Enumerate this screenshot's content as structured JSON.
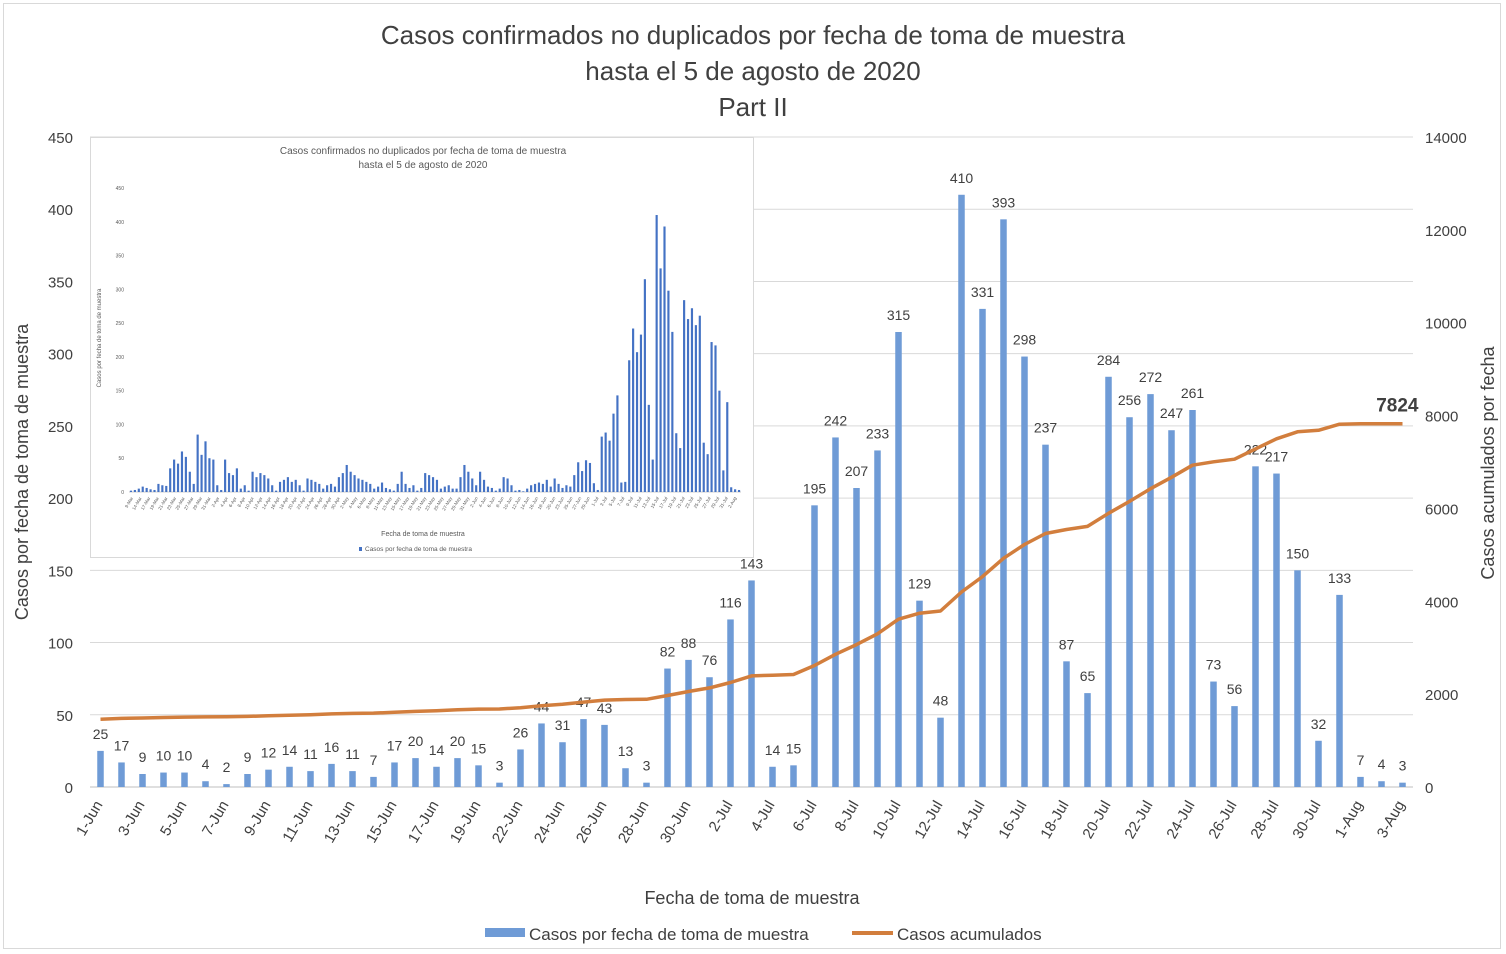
{
  "title_lines": [
    "Casos confirmados no duplicados por fecha de toma de muestra",
    "hasta el 5 de agosto de 2020",
    "Part II"
  ],
  "chart_data": [
    {
      "type": "bar",
      "combo": "bar+line (secondary axis)",
      "xlabel": "Fecha de toma de muestra",
      "ylabel": "Casos por fecha de toma de muestra",
      "y2label": "Casos acumulados por fecha",
      "ylim": [
        0,
        450
      ],
      "y_ticks": [
        0,
        50,
        100,
        150,
        200,
        250,
        300,
        350,
        400,
        450
      ],
      "y2lim": [
        0,
        14000
      ],
      "y2_ticks": [
        0,
        2000,
        4000,
        6000,
        8000,
        10000,
        12000,
        14000
      ],
      "grid": true,
      "legend_position": "bottom",
      "categories": [
        "1-Jun",
        "2-Jun",
        "3-Jun",
        "4-Jun",
        "5-Jun",
        "6-Jun",
        "7-Jun",
        "8-Jun",
        "9-Jun",
        "10-Jun",
        "11-Jun",
        "12-Jun",
        "13-Jun",
        "14-Jun",
        "15-Jun",
        "16-Jun",
        "17-Jun",
        "18-Jun",
        "19-Jun",
        "20-Jun",
        "22-Jun",
        "23-Jun",
        "24-Jun",
        "25-Jun",
        "26-Jun",
        "27-Jun",
        "28-Jun",
        "29-Jun",
        "30-Jun",
        "1-Jul",
        "2-Jul",
        "3-Jul",
        "4-Jul",
        "5-Jul",
        "6-Jul",
        "7-Jul",
        "8-Jul",
        "9-Jul",
        "10-Jul",
        "11-Jul",
        "12-Jul",
        "13-Jul",
        "14-Jul",
        "15-Jul",
        "16-Jul",
        "17-Jul",
        "18-Jul",
        "19-Jul",
        "20-Jul",
        "21-Jul",
        "22-Jul",
        "23-Jul",
        "24-Jul",
        "25-Jul",
        "26-Jul",
        "27-Jul",
        "28-Jul",
        "29-Jul",
        "30-Jul",
        "31-Jul",
        "1-Aug",
        "2-Aug",
        "3-Aug"
      ],
      "x_tick_labels": [
        "1-Jun",
        "3-Jun",
        "5-Jun",
        "7-Jun",
        "9-Jun",
        "11-Jun",
        "13-Jun",
        "15-Jun",
        "17-Jun",
        "19-Jun",
        "22-Jun",
        "24-Jun",
        "26-Jun",
        "28-Jun",
        "30-Jun",
        "2-Jul",
        "4-Jul",
        "6-Jul",
        "8-Jul",
        "10-Jul",
        "12-Jul",
        "14-Jul",
        "16-Jul",
        "18-Jul",
        "20-Jul",
        "22-Jul",
        "24-Jul",
        "26-Jul",
        "28-Jul",
        "30-Jul",
        "1-Aug",
        "3-Aug"
      ],
      "series": [
        {
          "name": "Casos por fecha de toma de muestra",
          "axis": "primary",
          "color": "#6f9bd6",
          "values": [
            25,
            17,
            9,
            10,
            10,
            4,
            2,
            9,
            12,
            14,
            11,
            16,
            11,
            7,
            17,
            20,
            14,
            20,
            15,
            3,
            26,
            44,
            31,
            47,
            43,
            13,
            3,
            82,
            88,
            76,
            116,
            143,
            14,
            15,
            195,
            242,
            207,
            233,
            315,
            129,
            48,
            410,
            331,
            393,
            298,
            237,
            87,
            65,
            284,
            256,
            272,
            247,
            261,
            73,
            56,
            222,
            217,
            150,
            32,
            133,
            7,
            4,
            3
          ]
        },
        {
          "name": "Casos acumulados",
          "axis": "secondary",
          "color": "#d27e3d",
          "values": [
            1460,
            1477,
            1486,
            1496,
            1506,
            1510,
            1512,
            1521,
            1533,
            1547,
            1558,
            1574,
            1585,
            1592,
            1609,
            1629,
            1643,
            1663,
            1678,
            1681,
            1707,
            1751,
            1782,
            1829,
            1872,
            1885,
            1888,
            1970,
            2058,
            2134,
            2250,
            2393,
            2407,
            2422,
            2617,
            2859,
            3066,
            3299,
            3614,
            3743,
            3791,
            4201,
            4532,
            4925,
            5223,
            5460,
            5547,
            5612,
            5896,
            6152,
            6424,
            6671,
            6932,
            7005,
            7061,
            7283,
            7500,
            7650,
            7682,
            7815,
            7822,
            7822,
            7824
          ]
        }
      ],
      "annotation": "7824"
    },
    {
      "type": "bar",
      "title_lines": [
        "Casos confirmados no duplicados por fecha de toma de muestra",
        "hasta el 5 de agosto de 2020"
      ],
      "xlabel": "Fecha de toma de muestra",
      "ylabel": "Casos por fecha de toma de muestra",
      "ylim": [
        0,
        450
      ],
      "y_ticks": [
        0,
        50,
        100,
        150,
        200,
        250,
        300,
        350,
        400,
        450
      ],
      "legend_position": "bottom",
      "x_tick_labels": [
        "9-Mar",
        "14-Mar",
        "17-Mar",
        "19-Mar",
        "21-Mar",
        "23-Mar",
        "25-Mar",
        "27-Mar",
        "29-Mar",
        "31-Mar",
        "2-Apr",
        "4-Apr",
        "6-Apr",
        "8-Apr",
        "10-Apr",
        "12-Apr",
        "14-Apr",
        "16-Apr",
        "18-Apr",
        "20-Apr",
        "22-Apr",
        "24-Apr",
        "26-Apr",
        "28-Apr",
        "30-Apr",
        "2-May",
        "4-May",
        "6-May",
        "8-May",
        "11-May",
        "13-May",
        "15-May",
        "17-May",
        "19-May",
        "21-May",
        "23-May",
        "25-May",
        "27-May",
        "29-May",
        "31-May",
        "2-Jun",
        "4-Jun",
        "6-Jun",
        "8-Jun",
        "10-Jun",
        "12-Jun",
        "14-Jun",
        "16-Jun",
        "18-Jun",
        "20-Jun",
        "23-Jun",
        "25-Jun",
        "27-Jun",
        "29-Jun",
        "1-Jul",
        "3-Jul",
        "5-Jul",
        "7-Jul",
        "9-Jul",
        "11-Jul",
        "13-Jul",
        "15-Jul",
        "17-Jul",
        "19-Jul",
        "21-Jul",
        "23-Jul",
        "25-Jul",
        "27-Jul",
        "29-Jul",
        "31-Jul",
        "2-Aug"
      ],
      "series": [
        {
          "name": "Casos por fecha de toma de muestra",
          "color": "#4472c4",
          "values": [
            2,
            3,
            5,
            8,
            6,
            4,
            3,
            12,
            10,
            9,
            35,
            48,
            42,
            60,
            52,
            30,
            12,
            85,
            55,
            75,
            50,
            48,
            10,
            3,
            48,
            28,
            25,
            35,
            5,
            10,
            2,
            30,
            22,
            28,
            25,
            20,
            10,
            2,
            15,
            18,
            22,
            15,
            18,
            10,
            2,
            20,
            18,
            15,
            12,
            5,
            10,
            12,
            8,
            22,
            28,
            40,
            30,
            25,
            20,
            18,
            15,
            12,
            5,
            8,
            14,
            6,
            4,
            2,
            12,
            30,
            12,
            6,
            10,
            2,
            6,
            28,
            25,
            22,
            18,
            5,
            8,
            10,
            5,
            5,
            22,
            40,
            30,
            20,
            10,
            30,
            18,
            8,
            6,
            2,
            5,
            22,
            20,
            10,
            2,
            3,
            1,
            5,
            10,
            12,
            14,
            12,
            18,
            8,
            20,
            12,
            6,
            10,
            8,
            25,
            44,
            31,
            47,
            43,
            13,
            3,
            82,
            88,
            76,
            116,
            143,
            14,
            15,
            195,
            242,
            207,
            233,
            315,
            129,
            48,
            410,
            331,
            393,
            298,
            237,
            87,
            65,
            284,
            256,
            272,
            247,
            261,
            73,
            56,
            222,
            217,
            150,
            32,
            133,
            7,
            4,
            3
          ]
        }
      ]
    }
  ]
}
